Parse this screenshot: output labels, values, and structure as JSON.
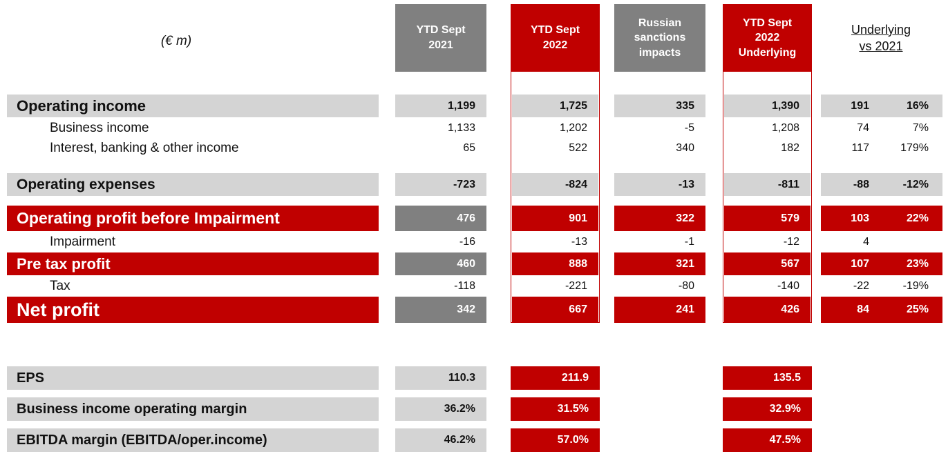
{
  "header": {
    "unit": "(€ m)",
    "col1": [
      "YTD Sept",
      "2021"
    ],
    "col2": [
      "YTD Sept",
      "2022"
    ],
    "col3": [
      "Russian",
      "sanctions",
      "impacts"
    ],
    "col4": [
      "YTD Sept",
      "2022",
      "Underlying"
    ],
    "col5": [
      "Underlying",
      "vs 2021"
    ]
  },
  "rows": {
    "opincome": {
      "label": "Operating income",
      "c1": "1,199",
      "c2": "1,725",
      "c3": "335",
      "c4": "1,390",
      "c5": "191",
      "c6": "16%"
    },
    "business": {
      "label": "Business income",
      "c1": "1,133",
      "c2": "1,202",
      "c3": "-5",
      "c4": "1,208",
      "c5": "74",
      "c6": "7%"
    },
    "interest": {
      "label": "Interest, banking & other income",
      "c1": "65",
      "c2": "522",
      "c3": "340",
      "c4": "182",
      "c5": "117",
      "c6": "179%"
    },
    "opexp": {
      "label": "Operating expenses",
      "c1": "-723",
      "c2": "-824",
      "c3": "-13",
      "c4": "-811",
      "c5": "-88",
      "c6": "-12%"
    },
    "opprofit": {
      "label": "Operating profit before Impairment",
      "c1": "476",
      "c2": "901",
      "c3": "322",
      "c4": "579",
      "c5": "103",
      "c6": "22%"
    },
    "impairment": {
      "label": "Impairment",
      "c1": "-16",
      "c2": "-13",
      "c3": "-1",
      "c4": "-12",
      "c5": "4",
      "c6": ""
    },
    "pretax": {
      "label": "Pre tax profit",
      "c1": "460",
      "c2": "888",
      "c3": "321",
      "c4": "567",
      "c5": "107",
      "c6": "23%"
    },
    "tax": {
      "label": "Tax",
      "c1": "-118",
      "c2": "-221",
      "c3": "-80",
      "c4": "-140",
      "c5": "-22",
      "c6": "-19%"
    },
    "net": {
      "label": "Net profit",
      "c1": "342",
      "c2": "667",
      "c3": "241",
      "c4": "426",
      "c5": "84",
      "c6": "25%"
    },
    "eps": {
      "label": "EPS",
      "c1": "110.3",
      "c2": "211.9",
      "c4": "135.5"
    },
    "bimargin": {
      "label": "Business income operating margin",
      "c1": "36.2%",
      "c2": "31.5%",
      "c4": "32.9%"
    },
    "ebitda": {
      "label": "EBITDA margin (EBITDA/oper.income)",
      "c1": "46.2%",
      "c2": "57.0%",
      "c4": "47.5%"
    }
  },
  "colors": {
    "red": "#c00000",
    "dark_gray": "#808080",
    "light_gray": "#d4d4d4"
  }
}
